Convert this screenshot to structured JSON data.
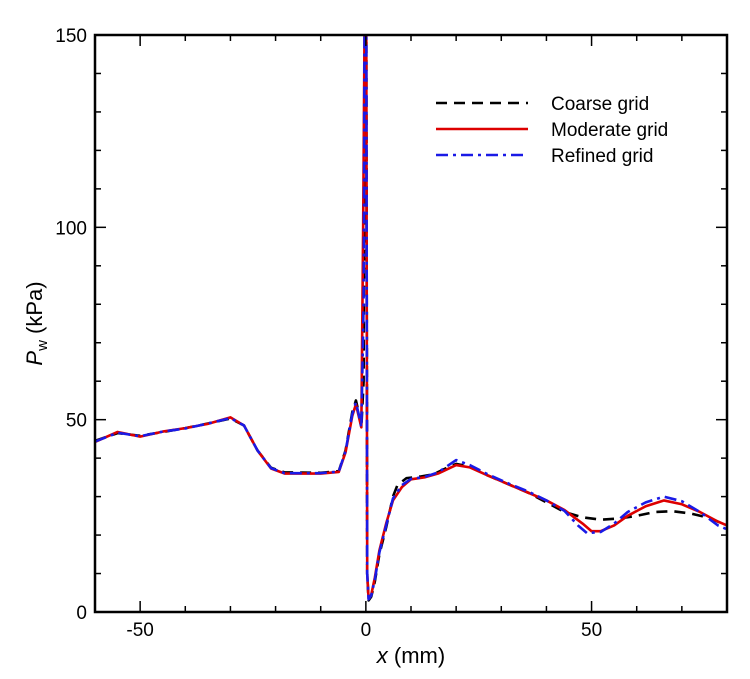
{
  "chart_data": {
    "type": "line",
    "xlabel": {
      "var": "x",
      "unit": " (mm)"
    },
    "ylabel": {
      "var": "P",
      "sub": "w",
      "unit": " (kPa)"
    },
    "xlim": [
      -60,
      80
    ],
    "ylim": [
      0,
      150
    ],
    "xticks": [
      -50,
      0,
      50
    ],
    "yticks": [
      0,
      50,
      100,
      150
    ],
    "x_minor_step": 10,
    "y_minor_step": 10,
    "grid": false,
    "legend_position": "top-right",
    "series": [
      {
        "name": "Coarse grid",
        "color": "#000000",
        "dash": "dashed",
        "points": [
          [
            -60,
            44.5
          ],
          [
            -55,
            46.5
          ],
          [
            -50,
            45.8
          ],
          [
            -45,
            46.8
          ],
          [
            -40,
            47.8
          ],
          [
            -35,
            49
          ],
          [
            -30,
            50.3
          ],
          [
            -27,
            48.5
          ],
          [
            -24,
            42
          ],
          [
            -21,
            37.5
          ],
          [
            -18,
            36.3
          ],
          [
            -10,
            36.2
          ],
          [
            -6,
            36.6
          ],
          [
            -4.5,
            42
          ],
          [
            -3,
            52
          ],
          [
            -2.2,
            55
          ],
          [
            -1.6,
            52
          ],
          [
            -1,
            48
          ],
          [
            -0.5,
            60
          ],
          [
            -0.2,
            150
          ],
          [
            0.1,
            150
          ],
          [
            0.3,
            10
          ],
          [
            0.6,
            3
          ],
          [
            1.2,
            4
          ],
          [
            2,
            8
          ],
          [
            3,
            15
          ],
          [
            4.5,
            22
          ],
          [
            6,
            30
          ],
          [
            7,
            33
          ],
          [
            9,
            34.8
          ],
          [
            12,
            35.2
          ],
          [
            15,
            35.8
          ],
          [
            18,
            37.5
          ],
          [
            20,
            38.5
          ],
          [
            23,
            37.8
          ],
          [
            27,
            35.5
          ],
          [
            32,
            33
          ],
          [
            36,
            31
          ],
          [
            40,
            28.5
          ],
          [
            44,
            26
          ],
          [
            48,
            24.6
          ],
          [
            52,
            24
          ],
          [
            56,
            24.3
          ],
          [
            60,
            25
          ],
          [
            64,
            26
          ],
          [
            68,
            26.2
          ],
          [
            72,
            25.6
          ],
          [
            76,
            24.5
          ],
          [
            80,
            22.5
          ]
        ]
      },
      {
        "name": "Moderate grid",
        "color": "#dd0000",
        "dash": "solid",
        "points": [
          [
            -60,
            44.2
          ],
          [
            -55,
            46.8
          ],
          [
            -50,
            45.6
          ],
          [
            -45,
            46.9
          ],
          [
            -40,
            47.8
          ],
          [
            -35,
            48.9
          ],
          [
            -30,
            50.6
          ],
          [
            -27,
            48.5
          ],
          [
            -24,
            42
          ],
          [
            -21,
            37.3
          ],
          [
            -18,
            36
          ],
          [
            -10,
            36
          ],
          [
            -6,
            36.4
          ],
          [
            -4.5,
            41.5
          ],
          [
            -3,
            51
          ],
          [
            -2.2,
            54
          ],
          [
            -1.6,
            51
          ],
          [
            -1,
            48
          ],
          [
            -0.6,
            100
          ],
          [
            -0.3,
            150
          ],
          [
            0.1,
            150
          ],
          [
            0.3,
            10
          ],
          [
            0.6,
            3.5
          ],
          [
            1.2,
            4.5
          ],
          [
            2,
            9
          ],
          [
            3,
            16
          ],
          [
            4.5,
            23
          ],
          [
            6,
            29
          ],
          [
            8,
            32.5
          ],
          [
            10,
            34.5
          ],
          [
            13,
            35
          ],
          [
            16,
            36
          ],
          [
            20,
            38.2
          ],
          [
            23,
            37.6
          ],
          [
            27,
            35.5
          ],
          [
            32,
            33
          ],
          [
            36,
            31
          ],
          [
            40,
            29
          ],
          [
            44,
            26.5
          ],
          [
            48,
            23
          ],
          [
            50,
            21
          ],
          [
            52,
            21
          ],
          [
            55,
            22.5
          ],
          [
            58,
            25
          ],
          [
            62,
            27.5
          ],
          [
            66,
            29
          ],
          [
            70,
            28
          ],
          [
            74,
            26
          ],
          [
            78,
            23.5
          ],
          [
            80,
            22.5
          ]
        ]
      },
      {
        "name": "Refined grid",
        "color": "#1a1ae6",
        "dash": "dashdot",
        "points": [
          [
            -60,
            44.3
          ],
          [
            -55,
            46.6
          ],
          [
            -50,
            45.7
          ],
          [
            -45,
            46.9
          ],
          [
            -40,
            47.7
          ],
          [
            -35,
            49
          ],
          [
            -30,
            50.4
          ],
          [
            -27,
            48.5
          ],
          [
            -24,
            42
          ],
          [
            -21,
            37.4
          ],
          [
            -18,
            36.1
          ],
          [
            -10,
            36.1
          ],
          [
            -6,
            36.5
          ],
          [
            -4.5,
            41.8
          ],
          [
            -3,
            51.5
          ],
          [
            -2.2,
            54.5
          ],
          [
            -1.6,
            51.5
          ],
          [
            -1,
            48
          ],
          [
            -0.5,
            80
          ],
          [
            -0.3,
            150
          ],
          [
            0.1,
            150
          ],
          [
            0.3,
            10
          ],
          [
            0.6,
            3.3
          ],
          [
            1.2,
            4.3
          ],
          [
            2,
            8.5
          ],
          [
            3,
            15.5
          ],
          [
            4.5,
            22.5
          ],
          [
            6,
            29.5
          ],
          [
            8,
            33
          ],
          [
            10,
            34.6
          ],
          [
            13,
            35.1
          ],
          [
            16,
            36.3
          ],
          [
            20,
            39.5
          ],
          [
            23,
            38.2
          ],
          [
            27,
            35.8
          ],
          [
            32,
            33.2
          ],
          [
            36,
            31.3
          ],
          [
            40,
            29
          ],
          [
            44,
            26.3
          ],
          [
            47,
            22.5
          ],
          [
            49,
            20.5
          ],
          [
            52,
            20.8
          ],
          [
            55,
            23
          ],
          [
            58,
            26
          ],
          [
            62,
            28.5
          ],
          [
            66,
            30
          ],
          [
            70,
            28.8
          ],
          [
            74,
            26
          ],
          [
            78,
            22.5
          ],
          [
            80,
            21.5
          ]
        ]
      }
    ]
  }
}
